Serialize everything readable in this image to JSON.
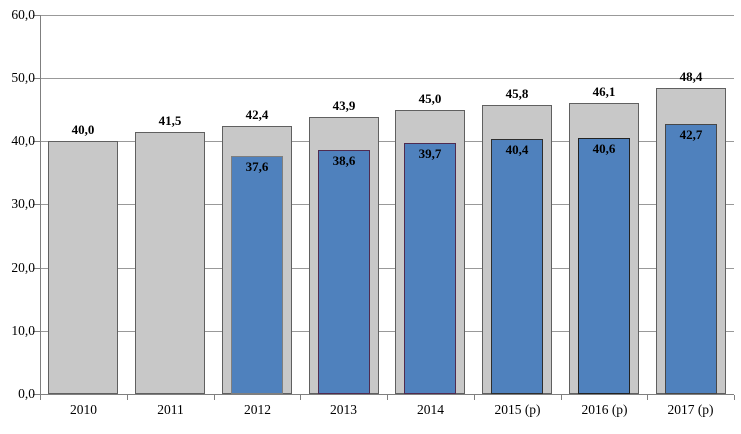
{
  "chart_data": {
    "type": "bar",
    "title": "",
    "xlabel": "",
    "ylabel": "",
    "categories": [
      "2010",
      "2011",
      "2012",
      "2013",
      "2014",
      "2015 (p)",
      "2016 (p)",
      "2017 (p)"
    ],
    "series": [
      {
        "name": "outer-gray-total",
        "values": [
          40.0,
          41.5,
          42.4,
          43.9,
          45.0,
          45.8,
          46.1,
          48.4
        ],
        "labels": [
          "40,0",
          "41,5",
          "42,4",
          "43,9",
          "45,0",
          "45,8",
          "46,1",
          "48,4"
        ],
        "fill": "#c8c8c8",
        "border": "#606060"
      },
      {
        "name": "inner-blue-subset",
        "values": [
          null,
          null,
          37.6,
          38.6,
          39.7,
          40.4,
          40.6,
          42.7
        ],
        "labels": [
          null,
          null,
          "37,6",
          "38,6",
          "39,7",
          "40,4",
          "40,6",
          "42,7"
        ],
        "fill": "#4f81bd",
        "borders": [
          null,
          null,
          "#7f7f7f",
          "#4f2b50",
          "#4f2b50",
          "#2e2e2e",
          "#222222",
          "#474747"
        ]
      }
    ],
    "ylim": [
      0,
      60
    ],
    "ytick_step": 10,
    "ytick_labels": [
      "0,0",
      "10,0",
      "20,0",
      "30,0",
      "40,0",
      "50,0",
      "60,0"
    ],
    "grid": true,
    "legend_position": "none",
    "colors": {
      "gridline": "#999999",
      "axis": "#7f7f7f",
      "outer_fill": "#c8c8c8",
      "inner_fill": "#4f81bd",
      "label_text": "#000000"
    }
  }
}
